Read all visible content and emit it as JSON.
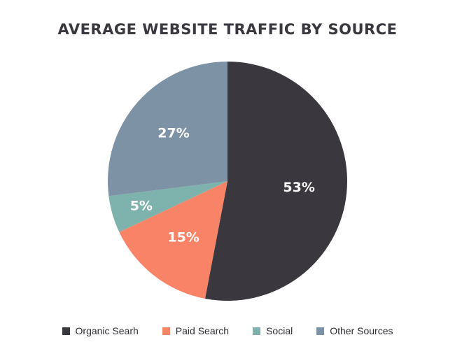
{
  "chart_data": {
    "type": "pie",
    "title": "AVERAGE WEBSITE TRAFFIC BY SOURCE",
    "legend_position": "bottom",
    "slices": [
      {
        "label": "Organic Searh",
        "value": 53,
        "value_label": "53%",
        "color": "#3b373e"
      },
      {
        "label": "Paid Search",
        "value": 15,
        "value_label": "15%",
        "color": "#f98367"
      },
      {
        "label": "Social",
        "value": 5,
        "value_label": "5%",
        "color": "#7db3ac"
      },
      {
        "label": "Other Sources",
        "value": 27,
        "value_label": "27%",
        "color": "#7e92a6"
      }
    ]
  }
}
